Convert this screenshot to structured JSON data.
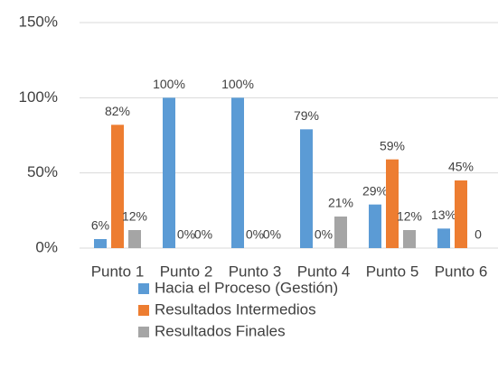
{
  "chart_data": {
    "type": "bar",
    "categories": [
      "Punto 1",
      "Punto 2",
      "Punto 3",
      "Punto 4",
      "Punto 5",
      "Punto 6"
    ],
    "series": [
      {
        "name": "Hacia el Proceso (Gestión)",
        "color": "#5b9bd5",
        "values": [
          6,
          100,
          100,
          79,
          29,
          13
        ],
        "value_labels": [
          "6%",
          "100%",
          "100%",
          "79%",
          "29%",
          "13%"
        ]
      },
      {
        "name": "Resultados Intermedios",
        "color": "#ed7d31",
        "values": [
          82,
          0,
          0,
          0,
          59,
          45
        ],
        "value_labels": [
          "82%",
          "0%",
          "0%",
          "0%",
          "59%",
          "45%"
        ]
      },
      {
        "name": "Resultados Finales",
        "color": "#a5a5a5",
        "values": [
          12,
          0,
          0,
          21,
          12,
          0
        ],
        "value_labels": [
          "12%",
          "0%",
          "0%",
          "21%",
          "12%",
          "0"
        ]
      }
    ],
    "ylim": [
      0,
      150
    ],
    "yticks": [
      {
        "value": 0,
        "label": "0%"
      },
      {
        "value": 50,
        "label": "50%"
      },
      {
        "value": 100,
        "label": "100%"
      },
      {
        "value": 150,
        "label": "150%"
      }
    ],
    "grid": true,
    "legend": "bottom"
  }
}
